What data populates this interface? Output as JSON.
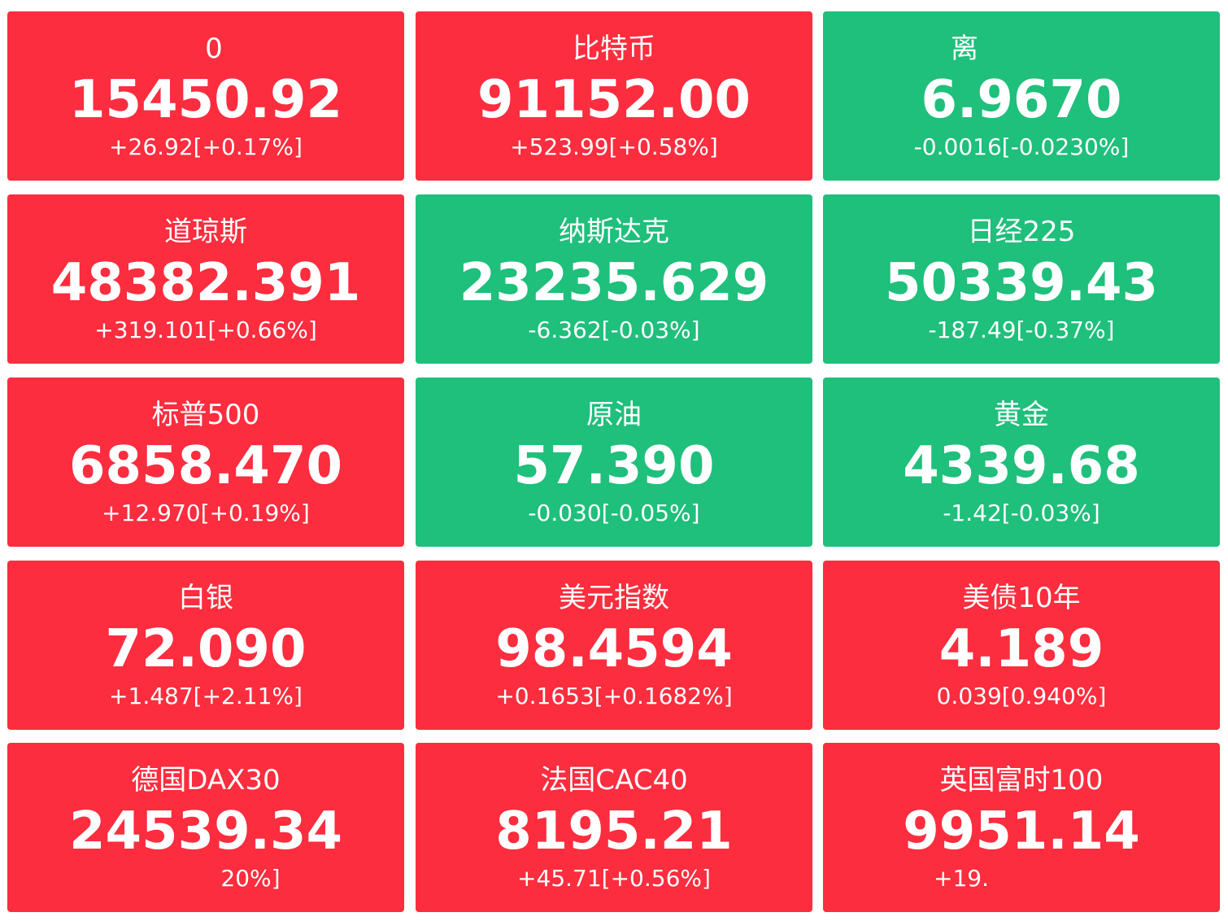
{
  "tiles": [
    {
      "name": "0",
      "price": "15450.92",
      "change": "+26.92[+0.17%]",
      "trend": "up"
    },
    {
      "name": "比特币",
      "price": "91152.00",
      "change": "+523.99[+0.58%]",
      "trend": "up"
    },
    {
      "name": "离",
      "price": "6.9670",
      "change": "-0.0016[-0.0230%]",
      "trend": "down"
    },
    {
      "name": "道琼斯",
      "price": "48382.391",
      "change": "+319.101[+0.66%]",
      "trend": "up"
    },
    {
      "name": "纳斯达克",
      "price": "23235.629",
      "change": "-6.362[-0.03%]",
      "trend": "down"
    },
    {
      "name": "日经225",
      "price": "50339.43",
      "change": "-187.49[-0.37%]",
      "trend": "down"
    },
    {
      "name": "标普500",
      "price": "6858.470",
      "change": "+12.970[+0.19%]",
      "trend": "up"
    },
    {
      "name": "原油",
      "price": "57.390",
      "change": "-0.030[-0.05%]",
      "trend": "down"
    },
    {
      "name": "黄金",
      "price": "4339.68",
      "change": "-1.42[-0.03%]",
      "trend": "down"
    },
    {
      "name": "白银",
      "price": "72.090",
      "change": "+1.487[+2.11%]",
      "trend": "up"
    },
    {
      "name": "美元指数",
      "price": "98.4594",
      "change": "+0.1653[+0.1682%]",
      "trend": "up"
    },
    {
      "name": "美债10年",
      "price": "4.189",
      "change": "0.039[0.940%]",
      "trend": "up"
    },
    {
      "name": "德国DAX30",
      "price": "24539.34",
      "change": "20%]",
      "trend": "up"
    },
    {
      "name": "法国CAC40",
      "price": "8195.21",
      "change": "+45.71[+0.56%]",
      "trend": "up"
    },
    {
      "name": "英国富时100",
      "price": "9951.14",
      "change": "+19.",
      "trend": "up"
    }
  ],
  "colors": {
    "up": "#fb2d3e",
    "down": "#1fbf7c",
    "text": "#ffffff",
    "background": "#ffffff"
  }
}
